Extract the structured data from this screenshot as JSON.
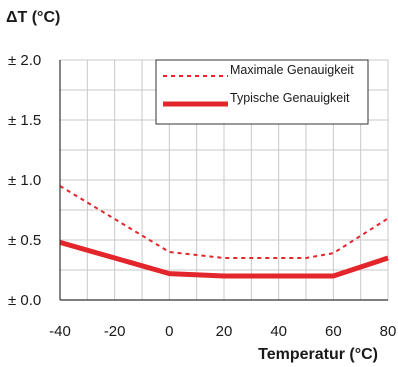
{
  "chart_data": {
    "type": "line",
    "ylabel": "ΔT (°C)",
    "xlabel": "Temperatur (°C)",
    "xlim": [
      -40,
      80
    ],
    "ylim": [
      0,
      2.0
    ],
    "xticks": [
      -40,
      -20,
      0,
      20,
      40,
      60,
      80
    ],
    "xtick_labels": [
      "-40",
      "-20",
      "0",
      "20",
      "40",
      "60",
      "80"
    ],
    "yticks": [
      0,
      0.5,
      1.0,
      1.5,
      2.0
    ],
    "ytick_labels": [
      "± 0.0",
      "± 0.5",
      "± 1.0",
      "± 1.5",
      "± 2.0"
    ],
    "grid": true,
    "legend_position": "top-right",
    "series": [
      {
        "name": "Maximale Genauigkeit",
        "style": "dashed",
        "color": "#e3262c",
        "x": [
          -40,
          0,
          20,
          25,
          50,
          60,
          80
        ],
        "y": [
          0.95,
          0.4,
          0.35,
          0.35,
          0.35,
          0.39,
          0.68
        ]
      },
      {
        "name": "Typische Genauigkeit",
        "style": "solid",
        "color": "#e3262c",
        "x": [
          -40,
          0,
          20,
          60,
          80
        ],
        "y": [
          0.48,
          0.22,
          0.2,
          0.2,
          0.35
        ]
      }
    ]
  }
}
